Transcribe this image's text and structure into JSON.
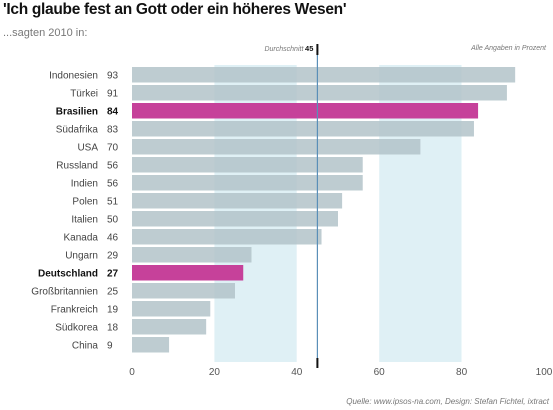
{
  "chart_data": {
    "type": "bar",
    "orientation": "horizontal",
    "title": "'Ich glaube fest an Gott oder ein höheres Wesen'",
    "subtitle": "...sagten 2010 in:",
    "categories": [
      "Indonesien",
      "Türkei",
      "Brasilien",
      "Südafrika",
      "USA",
      "Russland",
      "Indien",
      "Polen",
      "Italien",
      "Kanada",
      "Ungarn",
      "Deutschland",
      "Großbritannien",
      "Frankreich",
      "Südkorea",
      "China"
    ],
    "values": [
      93,
      91,
      84,
      83,
      70,
      56,
      56,
      51,
      50,
      46,
      29,
      27,
      25,
      19,
      18,
      9
    ],
    "highlighted": [
      "Brasilien",
      "Deutschland"
    ],
    "average": {
      "label": "Durchschnitt",
      "value": 45
    },
    "unit_note": "Alle Angaben in Prozent",
    "xlim": [
      0,
      100
    ],
    "xticks": [
      0,
      20,
      40,
      60,
      80,
      100
    ],
    "colors": {
      "bar": "#b3c3c9",
      "highlight": "#c6419a",
      "band": "#dff0f5",
      "average_line": "#5a8fb8",
      "tick_mark": "#111111"
    },
    "grid": false,
    "source": "Quelle: www.ipsos-na.com, Design: Stefan Fichtel, ixtract"
  }
}
